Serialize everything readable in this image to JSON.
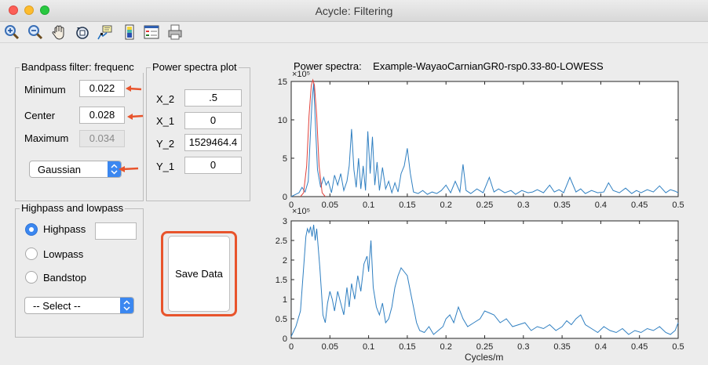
{
  "window": {
    "title": "Acycle: Filtering"
  },
  "toolbar": {
    "tools": [
      "zoom-in-icon",
      "zoom-out-icon",
      "pan-hand-icon",
      "rotate-icon",
      "data-cursor-icon",
      "colorbar-icon",
      "legend-icon",
      "print-icon"
    ]
  },
  "bandpass": {
    "title": "Bandpass filter: frequenc",
    "minimum_label": "Minimum",
    "minimum_value": "0.022",
    "center_label": "Center",
    "center_value": "0.028",
    "maximum_label": "Maximum",
    "maximum_value": "0.034",
    "window_type": "Gaussian"
  },
  "power_plot": {
    "title": "Power spectra plot",
    "x2_label": "X_2",
    "x2_value": ".5",
    "x1_label": "X_1",
    "x1_value": "0",
    "y2_label": "Y_2",
    "y2_value": "1529464.4",
    "y1_label": "Y_1",
    "y1_value": "0"
  },
  "highlow": {
    "title": "Highpass and lowpass",
    "highpass_label": "Highpass",
    "highpass_value": "",
    "lowpass_label": "Lowpass",
    "bandstop_label": "Bandstop",
    "select_value": "-- Select --",
    "selected": "Highpass"
  },
  "save_button": {
    "label": "Save Data"
  },
  "colors": {
    "accent": "#3b87f0",
    "spectrum": "#2f7fc1",
    "filter": "#e0403a",
    "highlight": "#e8542c"
  },
  "chart_data": [
    {
      "type": "line",
      "title": "Power spectra:    Example-WayaoCarnianGR0-rsp0.33-80-LOWESS",
      "exponent_label": "×10⁵",
      "xlim": [
        0,
        0.5
      ],
      "ylim": [
        0,
        15
      ],
      "xticks": [
        "0",
        "0.05",
        "0.1",
        "0.15",
        "0.2",
        "0.25",
        "0.3",
        "0.35",
        "0.4",
        "0.45",
        "0.5"
      ],
      "yticks": [
        "0",
        "5",
        "10",
        "15"
      ],
      "series": [
        {
          "x": [
            0,
            0.006,
            0.01,
            0.014,
            0.018,
            0.022,
            0.025,
            0.027,
            0.029,
            0.031,
            0.034,
            0.038,
            0.042,
            0.045,
            0.048,
            0.052,
            0.056,
            0.06,
            0.064,
            0.068,
            0.072,
            0.075,
            0.078,
            0.081,
            0.084,
            0.087,
            0.09,
            0.093,
            0.096,
            0.099,
            0.102,
            0.105,
            0.108,
            0.111,
            0.114,
            0.118,
            0.122,
            0.126,
            0.13,
            0.134,
            0.138,
            0.142,
            0.146,
            0.15,
            0.154,
            0.158,
            0.164,
            0.17,
            0.176,
            0.182,
            0.188,
            0.194,
            0.2,
            0.206,
            0.212,
            0.218,
            0.222,
            0.226,
            0.232,
            0.24,
            0.248,
            0.256,
            0.262,
            0.268,
            0.276,
            0.284,
            0.29,
            0.298,
            0.306,
            0.312,
            0.318,
            0.326,
            0.334,
            0.34,
            0.346,
            0.352,
            0.36,
            0.368,
            0.374,
            0.38,
            0.388,
            0.396,
            0.404,
            0.41,
            0.416,
            0.424,
            0.432,
            0.44,
            0.446,
            0.452,
            0.46,
            0.468,
            0.476,
            0.484,
            0.49,
            0.496,
            0.5
          ],
          "y": [
            0,
            0.3,
            0.5,
            1.2,
            0.6,
            2.0,
            8.5,
            12.5,
            14.8,
            10.0,
            3.5,
            1.2,
            2.5,
            1.5,
            2.0,
            0.5,
            2.8,
            1.5,
            3.0,
            0.8,
            2.0,
            4.0,
            8.8,
            3.5,
            1.2,
            5.0,
            1.0,
            4.0,
            0.8,
            8.5,
            3.0,
            7.8,
            1.5,
            4.5,
            0.8,
            3.8,
            1.0,
            2.0,
            0.5,
            1.8,
            0.6,
            3.0,
            4.0,
            6.3,
            3.0,
            0.6,
            0.4,
            0.8,
            0.3,
            0.6,
            0.4,
            0.8,
            1.5,
            0.5,
            2.0,
            0.6,
            4.2,
            0.8,
            0.4,
            1.0,
            0.5,
            2.5,
            0.6,
            1.0,
            0.5,
            0.8,
            0.3,
            0.8,
            0.5,
            0.6,
            0.9,
            0.5,
            1.5,
            0.6,
            0.9,
            0.5,
            2.5,
            0.6,
            1.0,
            0.4,
            0.8,
            0.5,
            0.6,
            1.8,
            0.8,
            0.5,
            1.1,
            0.4,
            0.8,
            0.5,
            0.9,
            0.6,
            1.4,
            0.5,
            0.9,
            0.7,
            0.5
          ]
        },
        {
          "name": "Gaussian filter",
          "x": [
            0.012,
            0.016,
            0.02,
            0.023,
            0.026,
            0.028,
            0.03,
            0.033,
            0.036,
            0.04,
            0.044
          ],
          "y": [
            0,
            0.5,
            4.0,
            10.5,
            14.5,
            15.2,
            14.5,
            10.5,
            4.0,
            0.5,
            0
          ]
        }
      ]
    },
    {
      "type": "line",
      "title": "",
      "exponent_label": "×10⁵",
      "xlabel": "Cycles/m",
      "xlim": [
        0,
        0.5
      ],
      "ylim": [
        0,
        3
      ],
      "xticks": [
        "0",
        "0.05",
        "0.1",
        "0.15",
        "0.2",
        "0.25",
        "0.3",
        "0.35",
        "0.4",
        "0.45",
        "0.5"
      ],
      "yticks": [
        "0",
        "0.5",
        "1",
        "1.5",
        "2",
        "2.5",
        "3"
      ],
      "series": [
        {
          "x": [
            0,
            0.006,
            0.012,
            0.016,
            0.019,
            0.021,
            0.023,
            0.025,
            0.027,
            0.029,
            0.031,
            0.033,
            0.035,
            0.037,
            0.039,
            0.041,
            0.044,
            0.047,
            0.05,
            0.053,
            0.056,
            0.06,
            0.064,
            0.068,
            0.072,
            0.075,
            0.078,
            0.082,
            0.086,
            0.09,
            0.094,
            0.098,
            0.1,
            0.103,
            0.106,
            0.11,
            0.114,
            0.118,
            0.122,
            0.126,
            0.13,
            0.134,
            0.138,
            0.142,
            0.146,
            0.15,
            0.154,
            0.158,
            0.162,
            0.166,
            0.172,
            0.178,
            0.184,
            0.19,
            0.196,
            0.2,
            0.205,
            0.21,
            0.216,
            0.222,
            0.228,
            0.236,
            0.244,
            0.25,
            0.256,
            0.262,
            0.27,
            0.278,
            0.286,
            0.294,
            0.302,
            0.31,
            0.318,
            0.326,
            0.334,
            0.342,
            0.35,
            0.356,
            0.362,
            0.368,
            0.374,
            0.38,
            0.388,
            0.396,
            0.404,
            0.412,
            0.42,
            0.428,
            0.436,
            0.444,
            0.452,
            0.46,
            0.468,
            0.476,
            0.484,
            0.49,
            0.496,
            0.5
          ],
          "y": [
            0.05,
            0.3,
            0.7,
            1.8,
            2.6,
            2.8,
            2.7,
            2.85,
            2.6,
            2.9,
            2.5,
            2.8,
            2.3,
            1.8,
            1.2,
            0.6,
            0.4,
            0.9,
            1.2,
            1.0,
            0.7,
            1.2,
            0.9,
            0.6,
            1.3,
            0.8,
            1.4,
            1.0,
            1.6,
            1.2,
            1.9,
            2.1,
            1.7,
            2.5,
            1.3,
            0.8,
            0.6,
            0.9,
            0.4,
            0.5,
            0.8,
            1.3,
            1.6,
            1.8,
            1.7,
            1.6,
            1.2,
            0.8,
            0.4,
            0.2,
            0.15,
            0.3,
            0.1,
            0.2,
            0.3,
            0.5,
            0.6,
            0.4,
            0.8,
            0.5,
            0.3,
            0.4,
            0.5,
            0.7,
            0.65,
            0.6,
            0.4,
            0.5,
            0.3,
            0.35,
            0.4,
            0.2,
            0.3,
            0.25,
            0.35,
            0.2,
            0.3,
            0.45,
            0.35,
            0.5,
            0.6,
            0.35,
            0.25,
            0.15,
            0.3,
            0.2,
            0.15,
            0.25,
            0.1,
            0.2,
            0.15,
            0.25,
            0.2,
            0.3,
            0.15,
            0.1,
            0.2,
            0.4
          ]
        }
      ]
    }
  ]
}
